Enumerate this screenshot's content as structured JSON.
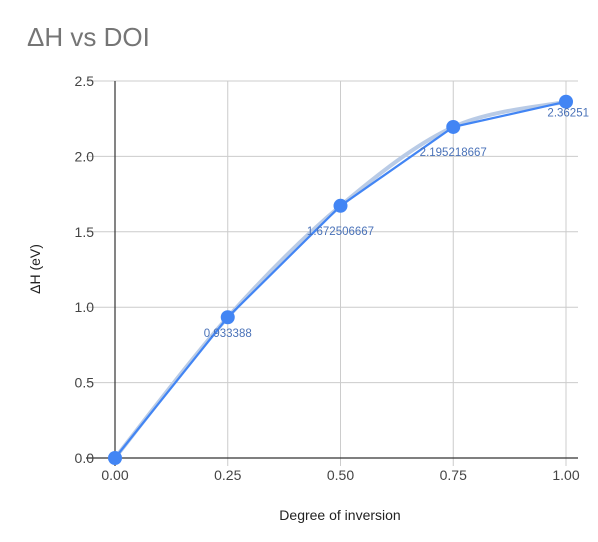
{
  "chart_data": {
    "type": "line",
    "title": "ΔH vs DOI",
    "xlabel": "Degree of inversion",
    "ylabel": "ΔH (eV)",
    "xlim": [
      0,
      1
    ],
    "ylim": [
      0,
      2.5
    ],
    "x_ticks": [
      "0.00",
      "0.25",
      "0.50",
      "0.75",
      "1.00"
    ],
    "y_ticks": [
      "0.0",
      "0.5",
      "1.0",
      "1.5",
      "2.0",
      "2.5"
    ],
    "grid": true,
    "legend": "none",
    "series": [
      {
        "x": [
          0,
          0.25,
          0.5,
          0.75,
          1.0
        ],
        "values": [
          0,
          0.933388,
          1.672506667,
          2.195218667,
          2.36251
        ],
        "labels": [
          "",
          "0.933388",
          "1.672506667",
          "2.195218667",
          "2.36251"
        ],
        "color": "#4285f4"
      }
    ],
    "trendline_color": "#b9cbe6"
  }
}
